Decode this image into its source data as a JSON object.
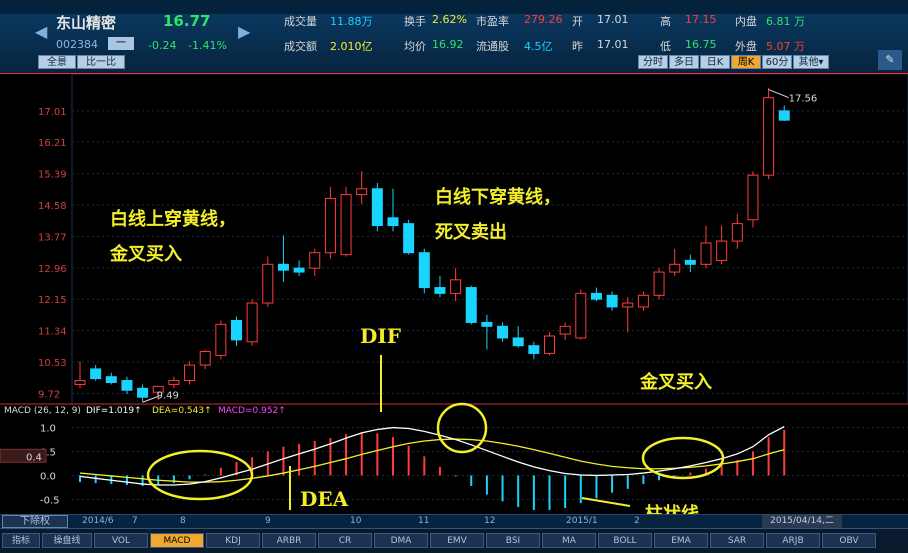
{
  "header": {
    "stock_name": "东山精密",
    "price": "16.77",
    "code": "002384",
    "code_btn": "一",
    "change": "-0.24",
    "change_pct": "-1.41%",
    "view_buttons": [
      "全景",
      "比一比"
    ],
    "quote_rows": [
      [
        {
          "label": "成交量",
          "value": "11.88万",
          "color": "#1ed0ff"
        },
        {
          "label": "换手",
          "value": "2.62%",
          "color": "#f2ee2a"
        },
        {
          "label": "市盈率",
          "value": "279.26",
          "color": "#ff3b3b"
        },
        {
          "label": "开",
          "value": "17.01",
          "color": "#d8d8d8"
        },
        {
          "label": "高",
          "value": "17.15",
          "color": "#ff3b3b"
        },
        {
          "label": "内盘",
          "value": "6.81 万",
          "color": "#2fe36a"
        }
      ],
      [
        {
          "label": "成交额",
          "value": "2.010亿",
          "color": "#f2ee2a"
        },
        {
          "label": "均价",
          "value": "16.92",
          "color": "#2fe36a"
        },
        {
          "label": "流通股",
          "value": "4.5亿",
          "color": "#1ed0ff"
        },
        {
          "label": "昨",
          "value": "17.01",
          "color": "#d8d8d8"
        },
        {
          "label": "低",
          "value": "16.75",
          "color": "#2fe36a"
        },
        {
          "label": "外盘",
          "value": "5.07 万",
          "color": "#ff3b3b"
        }
      ]
    ],
    "period_tabs": [
      "分时",
      "多日",
      "日K",
      "周K",
      "60分",
      "其他▾"
    ],
    "active_period": "周K"
  },
  "chart_data": [
    {
      "type": "candlestick",
      "title": "",
      "ylabel": "",
      "y_ticks": [
        "17.01",
        "16.21",
        "15.39",
        "14.58",
        "13.77",
        "12.96",
        "12.15",
        "11.34",
        "10.53",
        "9.72"
      ],
      "ylim": [
        9.6,
        17.6
      ],
      "candles": [
        {
          "o": 9.95,
          "h": 10.55,
          "l": 9.85,
          "c": 10.05
        },
        {
          "o": 10.35,
          "h": 10.45,
          "l": 10.05,
          "c": 10.1
        },
        {
          "o": 10.15,
          "h": 10.25,
          "l": 9.95,
          "c": 10.0
        },
        {
          "o": 10.05,
          "h": 10.15,
          "l": 9.7,
          "c": 9.8
        },
        {
          "o": 9.85,
          "h": 9.95,
          "l": 9.5,
          "c": 9.62
        },
        {
          "o": 9.75,
          "h": 9.9,
          "l": 9.55,
          "c": 9.9
        },
        {
          "o": 9.95,
          "h": 10.15,
          "l": 9.85,
          "c": 10.05
        },
        {
          "o": 10.05,
          "h": 10.55,
          "l": 9.95,
          "c": 10.45
        },
        {
          "o": 10.45,
          "h": 10.85,
          "l": 10.35,
          "c": 10.8
        },
        {
          "o": 10.7,
          "h": 11.6,
          "l": 10.6,
          "c": 11.5
        },
        {
          "o": 11.6,
          "h": 11.7,
          "l": 10.95,
          "c": 11.1
        },
        {
          "o": 11.05,
          "h": 12.15,
          "l": 10.95,
          "c": 12.05
        },
        {
          "o": 12.05,
          "h": 13.25,
          "l": 11.95,
          "c": 13.05
        },
        {
          "o": 13.05,
          "h": 13.8,
          "l": 12.6,
          "c": 12.9
        },
        {
          "o": 12.95,
          "h": 13.15,
          "l": 12.75,
          "c": 12.85
        },
        {
          "o": 12.95,
          "h": 13.45,
          "l": 12.75,
          "c": 13.35
        },
        {
          "o": 13.35,
          "h": 15.05,
          "l": 13.2,
          "c": 14.75
        },
        {
          "o": 13.3,
          "h": 15.05,
          "l": 13.25,
          "c": 14.85
        },
        {
          "o": 14.85,
          "h": 15.45,
          "l": 14.6,
          "c": 15.0
        },
        {
          "o": 15.0,
          "h": 15.15,
          "l": 13.9,
          "c": 14.05
        },
        {
          "o": 14.25,
          "h": 15.0,
          "l": 13.9,
          "c": 14.05
        },
        {
          "o": 14.1,
          "h": 14.2,
          "l": 13.3,
          "c": 13.35
        },
        {
          "o": 13.35,
          "h": 13.45,
          "l": 12.3,
          "c": 12.45
        },
        {
          "o": 12.45,
          "h": 12.75,
          "l": 12.2,
          "c": 12.3
        },
        {
          "o": 12.3,
          "h": 12.95,
          "l": 12.1,
          "c": 12.65
        },
        {
          "o": 12.45,
          "h": 12.5,
          "l": 11.5,
          "c": 11.55
        },
        {
          "o": 11.55,
          "h": 11.75,
          "l": 10.85,
          "c": 11.45
        },
        {
          "o": 11.45,
          "h": 11.55,
          "l": 11.05,
          "c": 11.15
        },
        {
          "o": 11.15,
          "h": 11.45,
          "l": 10.9,
          "c": 10.95
        },
        {
          "o": 10.95,
          "h": 11.05,
          "l": 10.6,
          "c": 10.75
        },
        {
          "o": 10.75,
          "h": 11.3,
          "l": 10.7,
          "c": 11.2
        },
        {
          "o": 11.25,
          "h": 11.55,
          "l": 11.1,
          "c": 11.45
        },
        {
          "o": 11.15,
          "h": 12.4,
          "l": 11.1,
          "c": 12.3
        },
        {
          "o": 12.3,
          "h": 12.45,
          "l": 12.1,
          "c": 12.15
        },
        {
          "o": 12.25,
          "h": 12.35,
          "l": 11.85,
          "c": 11.95
        },
        {
          "o": 11.95,
          "h": 12.2,
          "l": 11.3,
          "c": 12.05
        },
        {
          "o": 11.95,
          "h": 12.35,
          "l": 11.85,
          "c": 12.25
        },
        {
          "o": 12.25,
          "h": 12.95,
          "l": 12.15,
          "c": 12.85
        },
        {
          "o": 12.85,
          "h": 13.45,
          "l": 12.75,
          "c": 13.05
        },
        {
          "o": 13.15,
          "h": 13.3,
          "l": 12.85,
          "c": 13.05
        },
        {
          "o": 13.05,
          "h": 14.05,
          "l": 12.95,
          "c": 13.6
        },
        {
          "o": 13.15,
          "h": 14.05,
          "l": 13.05,
          "c": 13.65
        },
        {
          "o": 13.65,
          "h": 14.35,
          "l": 13.45,
          "c": 14.1
        },
        {
          "o": 14.2,
          "h": 15.45,
          "l": 14.0,
          "c": 15.35
        },
        {
          "o": 15.35,
          "h": 17.6,
          "l": 15.25,
          "c": 17.35
        },
        {
          "o": 17.01,
          "h": 17.15,
          "l": 16.75,
          "c": 16.77
        }
      ],
      "high_marker": "17.56",
      "low_marker": "9.49"
    },
    {
      "type": "bar+line",
      "title": "MACD (26, 12, 9)",
      "legend": [
        {
          "name": "DIF",
          "value": "DIF=1.019↑",
          "color": "#ffffff"
        },
        {
          "name": "DEA",
          "value": "DEA=0.543↑",
          "color": "#f2ee2a"
        },
        {
          "name": "MACD",
          "value": "MACD=0.952↑",
          "color": "#ff44ff"
        }
      ],
      "y_ticks": [
        "1.0",
        "0.5",
        "0.0",
        "-0.5"
      ],
      "y_highlight": "0.4",
      "ylim": [
        -0.68,
        1.2
      ],
      "DIF": [
        -0.02,
        -0.06,
        -0.1,
        -0.14,
        -0.18,
        -0.2,
        -0.2,
        -0.18,
        -0.13,
        -0.05,
        0.04,
        0.13,
        0.24,
        0.35,
        0.45,
        0.55,
        0.66,
        0.78,
        0.89,
        0.96,
        1.0,
        0.98,
        0.92,
        0.84,
        0.75,
        0.64,
        0.52,
        0.4,
        0.28,
        0.18,
        0.1,
        0.04,
        0.01,
        0.0,
        0.01,
        0.02,
        0.05,
        0.09,
        0.14,
        0.2,
        0.27,
        0.35,
        0.45,
        0.6,
        0.85,
        1.02
      ],
      "DEA": [
        0.05,
        0.02,
        -0.01,
        -0.04,
        -0.07,
        -0.1,
        -0.12,
        -0.14,
        -0.14,
        -0.13,
        -0.1,
        -0.06,
        -0.01,
        0.05,
        0.12,
        0.19,
        0.27,
        0.35,
        0.44,
        0.52,
        0.6,
        0.67,
        0.72,
        0.75,
        0.76,
        0.75,
        0.72,
        0.67,
        0.61,
        0.54,
        0.46,
        0.38,
        0.3,
        0.24,
        0.19,
        0.16,
        0.14,
        0.14,
        0.15,
        0.17,
        0.2,
        0.24,
        0.29,
        0.35,
        0.45,
        0.54
      ],
      "MACD": [
        -0.14,
        -0.16,
        -0.18,
        -0.2,
        -0.22,
        -0.2,
        -0.16,
        -0.08,
        0.02,
        0.16,
        0.28,
        0.38,
        0.5,
        0.6,
        0.66,
        0.72,
        0.78,
        0.86,
        0.9,
        0.88,
        0.8,
        0.62,
        0.4,
        0.18,
        -0.02,
        -0.22,
        -0.4,
        -0.54,
        -0.66,
        -0.72,
        -0.72,
        -0.68,
        -0.58,
        -0.48,
        -0.36,
        -0.28,
        -0.18,
        -0.1,
        -0.02,
        0.06,
        0.14,
        0.22,
        0.32,
        0.5,
        0.8,
        0.952
      ]
    }
  ],
  "annotations": {
    "golden_cross_1": "白线上穿黄线，",
    "golden_cross_1b": "金叉买入",
    "death_cross": "白线下穿黄线，",
    "death_cross_b": "死叉卖出",
    "golden_cross_2": "金叉买入",
    "dif": "DIF",
    "dea": "DEA",
    "bar_line": "柱状线"
  },
  "time_axis": {
    "fq_button": "下除权",
    "dates": [
      "2014/6",
      "7",
      "8",
      "9",
      "10",
      "11",
      "12",
      "2015/1",
      "2"
    ],
    "current_date": "2015/04/14,二"
  },
  "indicator_tabs": [
    "指标",
    "操盘线",
    "VOL",
    "MACD",
    "KDJ",
    "ARBR",
    "CR",
    "DMA",
    "EMV",
    "BSI",
    "MA",
    "BOLL",
    "EMA",
    "SAR",
    "ARJB",
    "OBV"
  ],
  "active_indicator": "MACD",
  "colors": {
    "up": "#ff3b3b",
    "down": "#19d4ff",
    "dif": "#ffffff",
    "dea": "#f2ee2a",
    "annotation": "#f2ee2a"
  }
}
